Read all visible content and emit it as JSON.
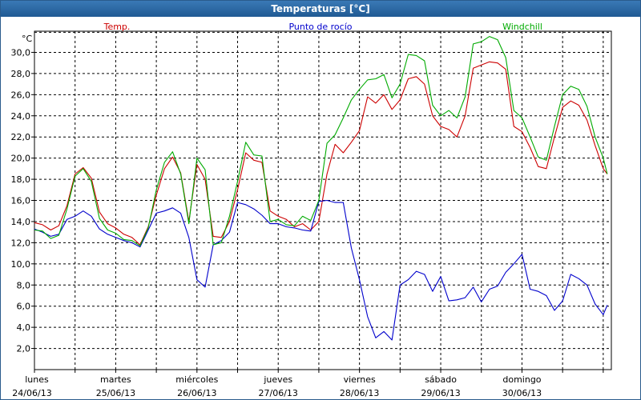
{
  "window": {
    "title": "Temperaturas [°C]"
  },
  "chart_data": {
    "type": "line",
    "unit_label": "°C",
    "ylim": [
      0,
      32
    ],
    "yticks": [
      2,
      4,
      6,
      8,
      10,
      12,
      14,
      16,
      18,
      20,
      22,
      24,
      26,
      28,
      30
    ],
    "ytick_labels": [
      "2,0",
      "4,0",
      "6,0",
      "8,0",
      "10,0",
      "12,0",
      "14,0",
      "16,0",
      "18,0",
      "20,0",
      "22,0",
      "24,0",
      "26,0",
      "28,0",
      "30,0"
    ],
    "xlim": [
      0,
      7.1
    ],
    "grid": true,
    "legend_placement": "top",
    "day_labels": [
      {
        "weekday": "lunes",
        "date": "24/06/13"
      },
      {
        "weekday": "martes",
        "date": "25/06/13"
      },
      {
        "weekday": "miércoles",
        "date": "26/06/13"
      },
      {
        "weekday": "jueves",
        "date": "27/06/13"
      },
      {
        "weekday": "viernes",
        "date": "28/06/13"
      },
      {
        "weekday": "sábado",
        "date": "29/06/13"
      },
      {
        "weekday": "domingo",
        "date": "30/06/13"
      }
    ],
    "series": [
      {
        "name": "Temp.",
        "color": "#cc0000",
        "x": [
          0,
          0.1,
          0.2,
          0.3,
          0.4,
          0.5,
          0.6,
          0.7,
          0.8,
          0.9,
          1,
          1.1,
          1.2,
          1.3,
          1.4,
          1.5,
          1.6,
          1.7,
          1.8,
          1.9,
          2,
          2.1,
          2.2,
          2.3,
          2.4,
          2.5,
          2.6,
          2.7,
          2.8,
          2.9,
          3,
          3.1,
          3.2,
          3.3,
          3.4,
          3.5,
          3.6,
          3.7,
          3.8,
          3.9,
          4,
          4.1,
          4.2,
          4.3,
          4.4,
          4.5,
          4.6,
          4.7,
          4.8,
          4.9,
          5,
          5.1,
          5.2,
          5.3,
          5.4,
          5.5,
          5.6,
          5.7,
          5.8,
          5.9,
          6,
          6.1,
          6.2,
          6.3,
          6.4,
          6.5,
          6.6,
          6.7,
          6.8,
          6.9,
          7,
          7.05
        ],
        "y": [
          13.9,
          13.7,
          13.2,
          13.6,
          15.5,
          18.5,
          19.1,
          18.1,
          14.9,
          13.8,
          13.4,
          12.8,
          12.5,
          11.8,
          13.5,
          16.5,
          19.0,
          20.1,
          18.6,
          14.0,
          19.4,
          18.0,
          12.6,
          12.5,
          14.0,
          17.0,
          20.5,
          19.8,
          19.6,
          15.0,
          14.5,
          14.2,
          13.5,
          13.8,
          13.2,
          14.0,
          18.5,
          21.3,
          20.5,
          21.5,
          22.6,
          25.8,
          25.2,
          26.0,
          24.6,
          25.5,
          27.5,
          27.7,
          27.0,
          24.0,
          23.0,
          22.7,
          22.0,
          24.0,
          28.5,
          28.8,
          29.1,
          29.0,
          28.4,
          23.0,
          22.5,
          21.0,
          19.2,
          19.0,
          22.0,
          24.8,
          25.4,
          25.0,
          23.6,
          21.2,
          19.0,
          18.5
        ]
      },
      {
        "name": "Punto de rocío",
        "color": "#0000cc",
        "x": [
          0,
          0.1,
          0.2,
          0.3,
          0.4,
          0.5,
          0.6,
          0.7,
          0.8,
          0.9,
          1,
          1.1,
          1.2,
          1.3,
          1.4,
          1.5,
          1.6,
          1.7,
          1.8,
          1.9,
          2,
          2.1,
          2.2,
          2.3,
          2.4,
          2.5,
          2.6,
          2.7,
          2.8,
          2.9,
          3,
          3.1,
          3.2,
          3.3,
          3.4,
          3.5,
          3.6,
          3.7,
          3.8,
          3.9,
          4,
          4.1,
          4.2,
          4.3,
          4.4,
          4.5,
          4.6,
          4.7,
          4.8,
          4.9,
          5,
          5.1,
          5.2,
          5.3,
          5.4,
          5.5,
          5.6,
          5.7,
          5.8,
          5.9,
          6,
          6.1,
          6.2,
          6.3,
          6.4,
          6.5,
          6.6,
          6.7,
          6.8,
          6.9,
          7,
          7.05
        ],
        "y": [
          13.3,
          13.0,
          12.6,
          12.8,
          14.2,
          14.5,
          15.0,
          14.5,
          13.3,
          12.8,
          12.5,
          12.2,
          12.0,
          11.6,
          13.2,
          14.8,
          15.0,
          15.3,
          14.8,
          12.5,
          8.5,
          7.8,
          11.8,
          12.2,
          13.0,
          15.8,
          15.6,
          15.2,
          14.6,
          13.8,
          13.8,
          13.5,
          13.4,
          13.2,
          13.1,
          15.9,
          16.0,
          15.8,
          15.8,
          11.5,
          8.5,
          5.0,
          3.0,
          3.6,
          2.8,
          8.0,
          8.5,
          9.3,
          9.0,
          7.4,
          8.8,
          6.5,
          6.6,
          6.8,
          7.8,
          6.4,
          7.6,
          7.9,
          9.2,
          10.0,
          10.9,
          7.6,
          7.4,
          7.0,
          5.6,
          6.5,
          9.0,
          8.6,
          8.0,
          6.2,
          5.2,
          6.1
        ]
      },
      {
        "name": "Windchill",
        "color": "#00aa00",
        "x": [
          0,
          0.1,
          0.2,
          0.3,
          0.4,
          0.5,
          0.6,
          0.7,
          0.8,
          0.9,
          1,
          1.1,
          1.2,
          1.3,
          1.4,
          1.5,
          1.6,
          1.7,
          1.8,
          1.9,
          2,
          2.1,
          2.2,
          2.3,
          2.4,
          2.5,
          2.6,
          2.7,
          2.8,
          2.9,
          3,
          3.1,
          3.2,
          3.3,
          3.4,
          3.5,
          3.6,
          3.7,
          3.8,
          3.9,
          4,
          4.1,
          4.2,
          4.3,
          4.4,
          4.5,
          4.6,
          4.7,
          4.8,
          4.9,
          5,
          5.1,
          5.2,
          5.3,
          5.4,
          5.5,
          5.6,
          5.7,
          5.8,
          5.9,
          6,
          6.1,
          6.2,
          6.3,
          6.4,
          6.5,
          6.6,
          6.7,
          6.8,
          6.9,
          7,
          7.05
        ],
        "y": [
          13.2,
          13.1,
          12.4,
          12.7,
          15.2,
          18.3,
          19.0,
          17.8,
          14.3,
          13.2,
          12.9,
          12.3,
          12.2,
          11.7,
          13.4,
          17.0,
          19.6,
          20.6,
          18.5,
          13.8,
          20.0,
          18.9,
          11.8,
          12.0,
          14.5,
          17.8,
          21.5,
          20.3,
          20.2,
          14.0,
          14.2,
          13.7,
          13.6,
          14.5,
          14.1,
          16.0,
          21.4,
          22.2,
          23.8,
          25.5,
          26.5,
          27.4,
          27.5,
          27.9,
          25.7,
          27.0,
          29.8,
          29.7,
          29.2,
          25.0,
          24.0,
          24.5,
          23.8,
          25.8,
          30.8,
          31.0,
          31.5,
          31.2,
          29.5,
          24.5,
          23.8,
          22.0,
          20.1,
          19.8,
          23.0,
          26.0,
          26.8,
          26.5,
          24.9,
          22.0,
          20.0,
          18.5
        ]
      }
    ]
  }
}
